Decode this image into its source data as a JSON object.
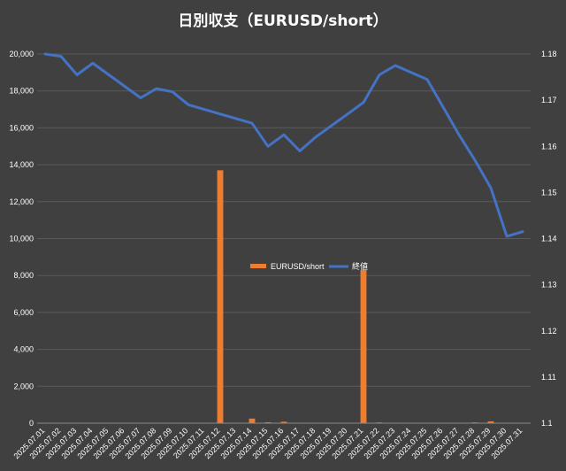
{
  "chart_data": {
    "type": "bar",
    "title": "日別収支（EURUSD/short）",
    "xlabel": "",
    "ylabel": "",
    "categories": [
      "2025.07.01",
      "2025.07.02",
      "2025.07.03",
      "2025.07.04",
      "2025.07.05",
      "2025.07.06",
      "2025.07.07",
      "2025.07.08",
      "2025.07.09",
      "2025.07.10",
      "2025.07.11",
      "2025.07.12",
      "2025.07.13",
      "2025.07.14",
      "2025.07.15",
      "2025.07.16",
      "2025.07.17",
      "2025.07.18",
      "2025.07.19",
      "2025.07.20",
      "2025.07.21",
      "2025.07.22",
      "2025.07.23",
      "2025.07.24",
      "2025.07.25",
      "2025.07.26",
      "2025.07.27",
      "2025.07.28",
      "2025.07.29",
      "2025.07.30",
      "2025.07.31"
    ],
    "ylim": [
      0,
      20000
    ],
    "yticks": [
      "0",
      "2,000",
      "4,000",
      "6,000",
      "8,000",
      "10,000",
      "12,000",
      "14,000",
      "16,000",
      "18,000",
      "20,000"
    ],
    "y2lim": [
      1.1,
      1.18
    ],
    "y2ticks": [
      "1.1",
      "1.11",
      "1.12",
      "1.13",
      "1.14",
      "1.15",
      "1.16",
      "1.17",
      "1.18"
    ],
    "grid": true,
    "legend_position": "center",
    "series": [
      {
        "name": "EURUSD/short",
        "type": "bar",
        "axis": "left",
        "color": "#ED7D31",
        "values": [
          0,
          0,
          0,
          0,
          0,
          0,
          0,
          0,
          0,
          0,
          0,
          13700,
          0,
          250,
          50,
          80,
          0,
          0,
          0,
          0,
          8300,
          40,
          0,
          0,
          0,
          0,
          0,
          40,
          100,
          0,
          0
        ]
      },
      {
        "name": "終値",
        "type": "line",
        "axis": "right",
        "color": "#4472C4",
        "values": [
          1.18,
          1.1795,
          1.1755,
          1.178,
          1.1755,
          1.173,
          1.1705,
          1.1725,
          1.1718,
          1.169,
          1.168,
          1.167,
          1.166,
          1.165,
          1.16,
          1.1625,
          1.159,
          1.162,
          1.1645,
          1.167,
          1.1695,
          1.1755,
          1.1775,
          1.176,
          1.1745,
          1.1685,
          1.1625,
          1.157,
          1.151,
          1.1405,
          1.1415
        ]
      }
    ]
  }
}
